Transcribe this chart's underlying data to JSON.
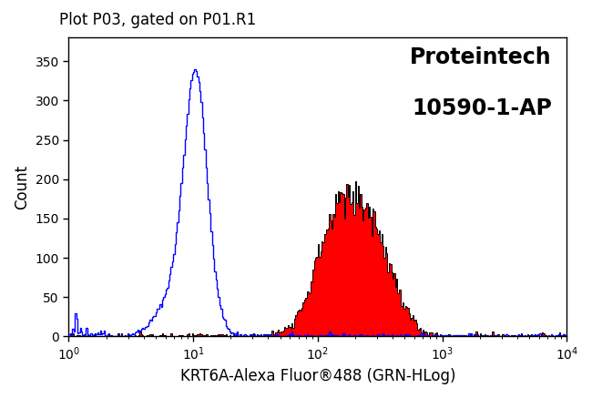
{
  "title": "Plot P03, gated on P01.R1",
  "xlabel": "KRT6A-Alexa Fluor®488 (GRN-HLog)",
  "ylabel": "Count",
  "annotation_line1": "Proteintech",
  "annotation_line2": "10590-1-AP",
  "xlim": [
    1,
    10000
  ],
  "ylim": [
    0,
    380
  ],
  "yticks": [
    0,
    50,
    100,
    150,
    200,
    250,
    300,
    350
  ],
  "background_color": "#ffffff",
  "blue_color": "#0000ff",
  "red_color": "#ff0000",
  "red_edge_color": "#000000",
  "title_fontsize": 12,
  "label_fontsize": 12,
  "annotation_fontsize": 17,
  "blue_peak_log": 1.02,
  "blue_sigma": 0.09,
  "blue_peak_height": 340,
  "red_peak_log": 2.25,
  "red_sigma": 0.22,
  "red_peak_height": 175,
  "n_bins": 400
}
